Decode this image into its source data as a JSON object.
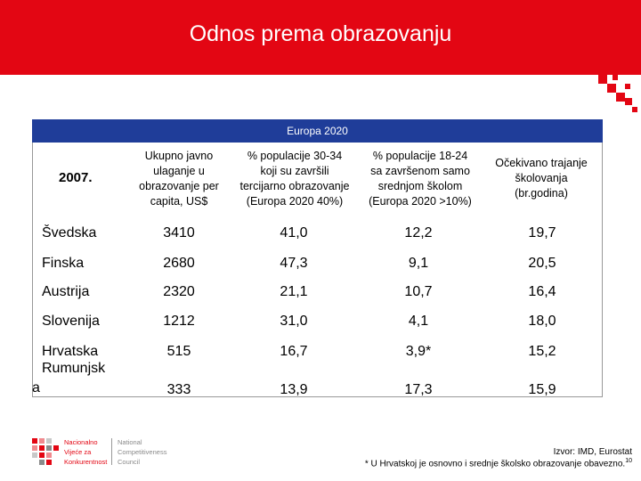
{
  "header": {
    "title": "Odnos prema obrazovanju"
  },
  "table": {
    "group_header": "Europa 2020",
    "year_label": "2007.",
    "columns": [
      [
        "Ukupno javno",
        "ulaganje u",
        "obrazovanje per",
        "capita, US$"
      ],
      [
        "% populacije 30-34",
        "koji su završili",
        "tercijarno obrazovanje",
        "(Europa 2020 40%)"
      ],
      [
        "% populacije 18-24",
        "sa završenom samo",
        "srednjom školom",
        "(Europa 2020  >10%)"
      ],
      [
        "Očekivano trajanje",
        "školovanja",
        "(br.godina)"
      ]
    ],
    "rows": [
      {
        "country": "Švedska",
        "values": [
          "3410",
          "41,0",
          "12,2",
          "19,7"
        ]
      },
      {
        "country": "Finska",
        "values": [
          "2680",
          "47,3",
          "9,1",
          "20,5"
        ]
      },
      {
        "country": "Austrija",
        "values": [
          "2320",
          "21,1",
          "10,7",
          "16,4"
        ]
      },
      {
        "country": "Slovenija",
        "values": [
          "1212",
          "31,0",
          "4,1",
          "18,0"
        ]
      },
      {
        "country": "Hrvatska",
        "values": [
          "515",
          "16,7",
          "3,9*",
          "15,2"
        ]
      },
      {
        "country_line1": "Rumunjsk",
        "country_line2": "a",
        "values": [
          "333",
          "13,9",
          "17,3",
          "15,9"
        ]
      }
    ]
  },
  "logo": {
    "red_lines": [
      "Nacionalno",
      "Vijeće za",
      "Konkurentnost"
    ],
    "grey_lines": [
      "National",
      "Competitiveness",
      "Council"
    ]
  },
  "footer": {
    "source": "Izvor: IMD, Eurostat",
    "note": "* U Hrvatskoj je osnovno i srednje školsko obrazovanje obavezno.",
    "page_number": "10"
  },
  "colors": {
    "brand_red": "#e30613",
    "header_blue": "#1f3d99"
  }
}
